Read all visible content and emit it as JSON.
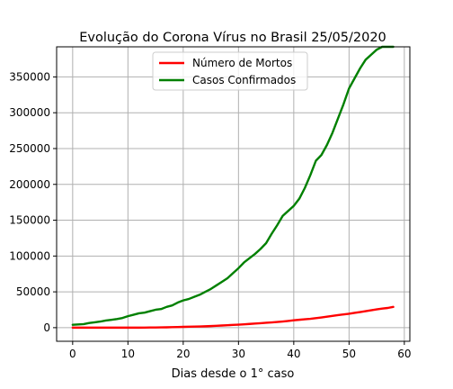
{
  "chart_data": {
    "type": "line",
    "title": "Evolução do Corona Vírus no Brasil 25/05/2020",
    "xlabel": "Dias desde o 1° caso",
    "ylabel": "",
    "xlim": [
      -2.9,
      61
    ],
    "ylim": [
      -19000,
      392000
    ],
    "xticks": [
      0,
      10,
      20,
      30,
      40,
      50,
      60
    ],
    "yticks": [
      0,
      50000,
      100000,
      150000,
      200000,
      250000,
      300000,
      350000
    ],
    "grid": true,
    "legend_position": "top-center",
    "x": [
      0,
      1,
      2,
      3,
      4,
      5,
      6,
      7,
      8,
      9,
      10,
      11,
      12,
      13,
      14,
      15,
      16,
      17,
      18,
      19,
      20,
      21,
      22,
      23,
      24,
      25,
      26,
      27,
      28,
      29,
      30,
      31,
      32,
      33,
      34,
      35,
      36,
      37,
      38,
      39,
      40,
      41,
      42,
      43,
      44,
      45,
      46,
      47,
      48,
      49,
      50,
      51,
      52,
      53,
      54,
      55,
      56,
      57,
      58
    ],
    "series": [
      {
        "name": "Número de Mortos",
        "color": "#ff0000",
        "values": [
          0,
          0,
          0,
          0,
          0,
          0,
          0,
          0,
          0,
          0,
          0,
          0,
          0,
          100,
          200,
          300,
          400,
          500,
          700,
          900,
          1100,
          1300,
          1500,
          1700,
          1900,
          2200,
          2600,
          3000,
          3400,
          3800,
          4200,
          4700,
          5200,
          5700,
          6200,
          6800,
          7300,
          7900,
          8600,
          9400,
          10300,
          11000,
          11700,
          12400,
          13300,
          14300,
          15400,
          16400,
          17500,
          18500,
          19400,
          20600,
          21800,
          23000,
          24300,
          25500,
          26600,
          27500,
          29000
        ]
      },
      {
        "name": "Casos Confirmados",
        "color": "#008000",
        "values": [
          4000,
          4500,
          5000,
          6500,
          7500,
          8500,
          10000,
          11000,
          12000,
          13500,
          16000,
          18000,
          20000,
          21000,
          23000,
          25000,
          26000,
          29000,
          31000,
          35000,
          38000,
          40000,
          43000,
          46000,
          50000,
          54000,
          59000,
          64000,
          69000,
          76000,
          83000,
          91000,
          97000,
          103000,
          110000,
          118000,
          131000,
          143000,
          156000,
          163000,
          170000,
          180000,
          195000,
          213000,
          233000,
          241000,
          255000,
          272000,
          292000,
          312000,
          334000,
          348000,
          362000,
          374000,
          381000,
          388000,
          393000,
          397000,
          400000
        ]
      }
    ]
  }
}
